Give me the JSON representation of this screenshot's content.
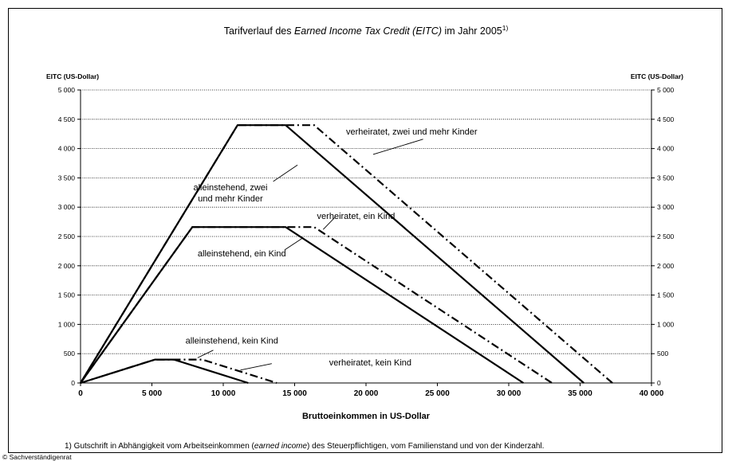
{
  "chart_data": {
    "type": "line",
    "title_prefix": "Tarifverlauf des ",
    "title_italic": "Earned Income Tax Credit (EITC)",
    "title_suffix": " im Jahr 2005",
    "title_sup": "1)",
    "ylabel_left": "EITC (US-Dollar)",
    "ylabel_right": "EITC (US-Dollar)",
    "xlabel": "Bruttoeinkommen in US-Dollar",
    "xlim": [
      0,
      40000
    ],
    "ylim": [
      0,
      5000
    ],
    "x_ticks": [
      "0",
      "5 000",
      "10 000",
      "15 000",
      "20 000",
      "25 000",
      "30 000",
      "35 000",
      "40 000"
    ],
    "y_ticks": [
      "0",
      "500",
      "1 000",
      "1 500",
      "2 000",
      "2 500",
      "3 000",
      "3 500",
      "4 000",
      "4 500",
      "5 000"
    ],
    "grid": "horizontal dotted",
    "series": [
      {
        "name": "alleinstehend, zwei und mehr Kinder",
        "style": "solid",
        "points": [
          [
            0,
            0
          ],
          [
            11000,
            4400
          ],
          [
            14370,
            4400
          ],
          [
            35260,
            0
          ]
        ]
      },
      {
        "name": "verheiratet, zwei und mehr Kinder",
        "style": "dashdot",
        "points": [
          [
            0,
            0
          ],
          [
            11000,
            4400
          ],
          [
            16370,
            4400
          ],
          [
            37260,
            0
          ]
        ]
      },
      {
        "name": "alleinstehend, ein Kind",
        "style": "solid",
        "points": [
          [
            0,
            0
          ],
          [
            7830,
            2660
          ],
          [
            14370,
            2660
          ],
          [
            31030,
            0
          ]
        ]
      },
      {
        "name": "verheiratet, ein Kind",
        "style": "dashdot",
        "points": [
          [
            0,
            0
          ],
          [
            7830,
            2660
          ],
          [
            16370,
            2660
          ],
          [
            33030,
            0
          ]
        ]
      },
      {
        "name": "alleinstehend, kein Kind",
        "style": "solid",
        "points": [
          [
            0,
            0
          ],
          [
            5220,
            400
          ],
          [
            6530,
            400
          ],
          [
            11750,
            0
          ]
        ]
      },
      {
        "name": "verheiratet, kein Kind",
        "style": "dashdot",
        "points": [
          [
            0,
            0
          ],
          [
            5220,
            400
          ],
          [
            8530,
            400
          ],
          [
            13750,
            0
          ]
        ]
      }
    ],
    "annotations": [
      {
        "lines": [
          "verheiratet, zwei und mehr Kinder"
        ],
        "x": 23200,
        "y": 4240
      },
      {
        "lines": [
          "alleinstehend, zwei",
          "und mehr Kinder"
        ],
        "x": 10500,
        "y": 3290
      },
      {
        "lines": [
          "verheiratet, ein Kind"
        ],
        "x": 19300,
        "y": 2800
      },
      {
        "lines": [
          "alleinstehend, ein Kind"
        ],
        "x": 11300,
        "y": 2160
      },
      {
        "lines": [
          "alleinstehend, kein Kind"
        ],
        "x": 10600,
        "y": 670
      },
      {
        "lines": [
          "verheiratet, kein Kind"
        ],
        "x": 20300,
        "y": 300
      }
    ]
  },
  "footnote_prefix": "1) Gutschrift in Abhängigkeit vom Arbeitseinkommen (",
  "footnote_italic": "earned income",
  "footnote_suffix": ") des Steuerpflichtigen, vom Familienstand und von der Kinderzahl.",
  "copyright": "© Sachverständigenrat"
}
